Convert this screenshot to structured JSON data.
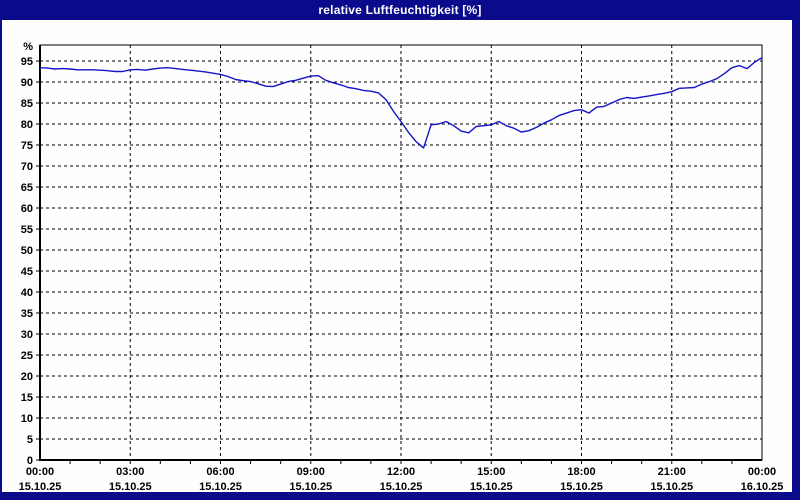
{
  "window": {
    "title": "relative Luftfeuchtigkeit [%]"
  },
  "colors": {
    "frame": "#0a0a8c",
    "titlebar_bg": "#0a0a8c",
    "title_text": "#ffffff",
    "plot_background": "#fefefe",
    "grid": "#000000",
    "axis": "#000000",
    "tick_text": "#000000",
    "line": "#1414c8"
  },
  "chart_data": {
    "type": "line",
    "title": "relative Luftfeuchtigkeit [%]",
    "ylabel": "%",
    "xlabel": "",
    "grid": "dashed",
    "legend": "none",
    "ylim": [
      0,
      98.8
    ],
    "y_tick_step": 5,
    "y_tick_labels": [
      "0",
      "5",
      "10",
      "15",
      "20",
      "25",
      "30",
      "35",
      "40",
      "45",
      "50",
      "55",
      "60",
      "65",
      "70",
      "75",
      "80",
      "85",
      "90",
      "95"
    ],
    "y_unit_label": "%",
    "x_start_hour": 0,
    "x_end_hour": 24,
    "x_interval_minutes": 15,
    "x_major_tick_hours": 3,
    "x_minor_tick_hours": 1,
    "x_tick_labels": [
      {
        "time": "00:00",
        "date": "15.10.25"
      },
      {
        "time": "03:00",
        "date": "15.10.25"
      },
      {
        "time": "06:00",
        "date": "15.10.25"
      },
      {
        "time": "09:00",
        "date": "15.10.25"
      },
      {
        "time": "12:00",
        "date": "15.10.25"
      },
      {
        "time": "15:00",
        "date": "15.10.25"
      },
      {
        "time": "18:00",
        "date": "15.10.25"
      },
      {
        "time": "21:00",
        "date": "15.10.25"
      },
      {
        "time": "00:00",
        "date": "16.10.25"
      }
    ],
    "series": [
      {
        "name": "relative Luftfeuchtigkeit",
        "color": "#1414c8",
        "values": [
          93.4,
          93.3,
          93.1,
          93.2,
          93.1,
          92.9,
          92.9,
          92.9,
          92.8,
          92.7,
          92.5,
          92.5,
          92.9,
          93.0,
          92.8,
          93.1,
          93.3,
          93.4,
          93.2,
          93.0,
          92.8,
          92.6,
          92.4,
          92.1,
          91.8,
          91.3,
          90.6,
          90.3,
          90.1,
          89.6,
          89.0,
          88.9,
          89.5,
          90.1,
          90.4,
          90.9,
          91.4,
          91.5,
          90.4,
          89.8,
          89.3,
          88.7,
          88.4,
          88.0,
          87.8,
          87.4,
          85.8,
          83.0,
          80.6,
          78.0,
          75.8,
          74.3,
          79.8,
          80.0,
          80.6,
          79.6,
          78.3,
          77.9,
          79.4,
          79.6,
          79.8,
          80.6,
          79.6,
          79.0,
          78.1,
          78.4,
          79.2,
          80.2,
          81.0,
          82.0,
          82.6,
          83.2,
          83.4,
          82.6,
          84.0,
          84.2,
          85.0,
          85.8,
          86.3,
          86.1,
          86.4,
          86.7,
          87.0,
          87.3,
          87.7,
          88.5,
          88.6,
          88.7,
          89.5,
          90.1,
          90.8,
          92.0,
          93.4,
          93.9,
          93.2,
          94.7,
          95.8
        ]
      }
    ]
  }
}
